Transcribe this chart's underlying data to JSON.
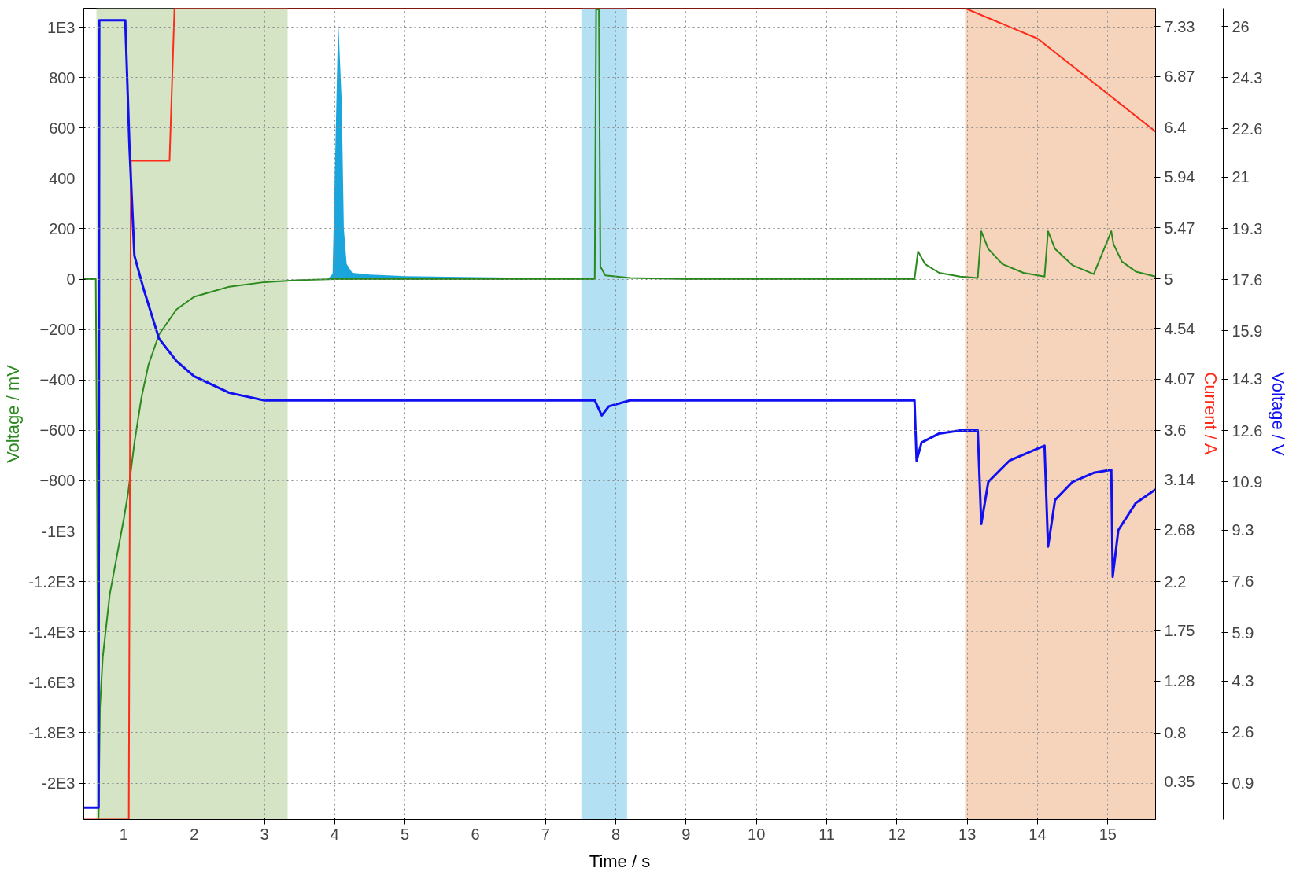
{
  "chart_data": {
    "type": "line",
    "xlabel": "Time / s",
    "ylabel": "Voltage / mV",
    "y2label": "Current / A",
    "y3label": "Voltage / V",
    "xlim": [
      0.43,
      15.68
    ],
    "xticks": [
      1,
      2,
      3,
      4,
      5,
      6,
      7,
      8,
      9,
      10,
      11,
      12,
      13,
      14,
      15
    ],
    "ylim": [
      -2145,
      1075
    ],
    "yticks": [
      {
        "value": 1000,
        "label": "1E3"
      },
      800,
      600,
      400,
      200,
      0,
      -200,
      -400,
      -600,
      -800,
      {
        "value": -1000,
        "label": "-1E3"
      },
      {
        "value": -1200,
        "label": "-1.2E3"
      },
      {
        "value": -1400,
        "label": "-1.4E3"
      },
      {
        "value": -1600,
        "label": "-1.6E3"
      },
      {
        "value": -1800,
        "label": "-1.8E3"
      },
      {
        "value": -2000,
        "label": "-2E3"
      }
    ],
    "y2lim": [
      0,
      7.5
    ],
    "y2ticks": [
      7.33,
      6.87,
      6.4,
      5.94,
      5.47,
      5,
      4.54,
      4.07,
      3.6,
      3.14,
      2.68,
      2.2,
      1.75,
      1.28,
      0.8,
      0.35
    ],
    "y3lim": [
      -0.3,
      26.6
    ],
    "y3ticks": [
      26,
      24.3,
      22.6,
      21,
      19.3,
      17.6,
      15.9,
      14.3,
      12.6,
      10.9,
      9.3,
      7.6,
      5.9,
      4.3,
      2.6,
      0.9
    ],
    "grid": true,
    "line_style": "solid",
    "marker": "none",
    "bands": [
      {
        "axis": "x",
        "from": 0.61,
        "to": 3.33,
        "color": "#d4e4c5"
      },
      {
        "axis": "x",
        "from": 7.51,
        "to": 8.16,
        "color": "#b3e0f3"
      },
      {
        "axis": "x",
        "from": 12.97,
        "to": 15.68,
        "color": "#f6d3bb"
      }
    ],
    "series": [
      {
        "type": "area",
        "axis": "y",
        "color": "#1aa5dc",
        "x": [
          3.9,
          3.97,
          4.0,
          4.05,
          4.1,
          4.13,
          4.17,
          4.25,
          4.5,
          5,
          6,
          7,
          7.5,
          7.55
        ],
        "values": [
          0,
          20,
          400,
          1030,
          700,
          200,
          60,
          25,
          18,
          12,
          8,
          5,
          3,
          0
        ]
      },
      {
        "axis": "y",
        "color": "#2a8a1e",
        "x": [
          0.43,
          0.6,
          0.62,
          0.64,
          0.66,
          0.7,
          0.8,
          0.9,
          1.0,
          1.06,
          1.15,
          1.25,
          1.35,
          1.5,
          1.75,
          2.0,
          2.5,
          3.0,
          3.5,
          4.0,
          7.0,
          7.7,
          7.72,
          7.76,
          7.78,
          7.85,
          8.2,
          9,
          12.25,
          12.3,
          12.4,
          12.6,
          12.9,
          13.15,
          13.2,
          13.3,
          13.5,
          13.8,
          14.1,
          14.15,
          14.25,
          14.5,
          14.8,
          15.05,
          15.08,
          15.2,
          15.4,
          15.68
        ],
        "values": [
          0,
          0,
          -900,
          -2140,
          -1700,
          -1500,
          -1250,
          -1100,
          -950,
          -850,
          -650,
          -470,
          -340,
          -220,
          -120,
          -70,
          -30,
          -12,
          -4,
          0,
          0,
          0,
          1070,
          1070,
          50,
          15,
          5,
          0,
          0,
          110,
          60,
          25,
          10,
          5,
          190,
          120,
          60,
          25,
          10,
          190,
          120,
          55,
          20,
          190,
          140,
          70,
          30,
          10
        ]
      },
      {
        "axis": "y2",
        "color": "#ff2a1a",
        "x": [
          0.43,
          1.07,
          1.1,
          1.65,
          1.72,
          12.97,
          14.0,
          15.68
        ],
        "values": [
          0,
          0,
          6.09,
          6.09,
          7.5,
          7.5,
          7.22,
          6.36
        ]
      },
      {
        "axis": "y3",
        "color": "#1010f0",
        "x": [
          0.43,
          0.64,
          0.65,
          1.02,
          1.08,
          1.15,
          1.28,
          1.5,
          1.75,
          2.0,
          2.5,
          3.0,
          3.5,
          5,
          7.7,
          7.8,
          7.9,
          8.2,
          12.25,
          12.28,
          12.35,
          12.6,
          12.9,
          13.15,
          13.2,
          13.3,
          13.6,
          13.9,
          14.1,
          14.15,
          14.25,
          14.5,
          14.8,
          15.05,
          15.07,
          15.15,
          15.4,
          15.68
        ],
        "values": [
          0.1,
          0.1,
          26.2,
          26.2,
          22,
          18.4,
          17.3,
          15.65,
          14.9,
          14.4,
          13.85,
          13.6,
          13.6,
          13.6,
          13.6,
          13.1,
          13.4,
          13.6,
          13.6,
          11.6,
          12.2,
          12.5,
          12.6,
          12.6,
          9.5,
          10.9,
          11.6,
          11.9,
          12.1,
          8.75,
          10.3,
          10.9,
          11.2,
          11.3,
          7.75,
          9.3,
          10.2,
          10.65
        ]
      }
    ]
  }
}
